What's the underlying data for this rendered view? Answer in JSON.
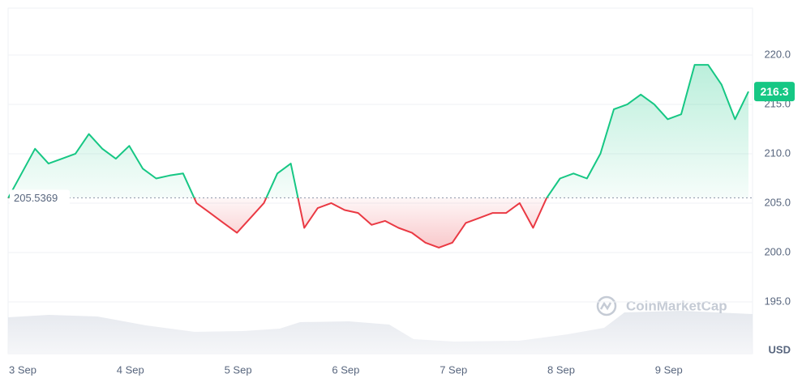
{
  "chart_data": {
    "type": "line",
    "categories": [
      "3 Sep",
      null,
      null,
      null,
      null,
      null,
      null,
      null,
      "4 Sep",
      null,
      null,
      null,
      null,
      null,
      null,
      null,
      "5 Sep",
      null,
      null,
      null,
      null,
      null,
      null,
      null,
      "6 Sep",
      null,
      null,
      null,
      null,
      null,
      null,
      null,
      "7 Sep",
      null,
      null,
      null,
      null,
      null,
      null,
      null,
      "8 Sep",
      null,
      null,
      null,
      null,
      null,
      null,
      null,
      "9 Sep",
      null,
      null,
      null,
      null,
      null,
      null,
      null
    ],
    "values": [
      205.5,
      208,
      210.5,
      209,
      209.5,
      210,
      212,
      210.5,
      209.5,
      210.8,
      208.5,
      207.5,
      207.8,
      208,
      205,
      204,
      203,
      202,
      203.5,
      205,
      208,
      209,
      202.5,
      204.5,
      205,
      204.3,
      204,
      202.8,
      203.2,
      202.5,
      202,
      201,
      200.5,
      201,
      203,
      203.5,
      204,
      204,
      205,
      202.5,
      205.5,
      207.5,
      208,
      207.5,
      210,
      214.5,
      215,
      216,
      215,
      213.5,
      214,
      219,
      219,
      217,
      213.5,
      216.3
    ],
    "baseline": 205.5369,
    "baseline_label": "205.5369",
    "up_color": "#16c784",
    "down_color": "#ea3943",
    "ylim": [
      189.75,
      224.75
    ],
    "yticks": [
      {
        "value": 195,
        "label": "195.0"
      },
      {
        "value": 200,
        "label": "200.0"
      },
      {
        "value": 205,
        "label": "205.0"
      },
      {
        "value": 210,
        "label": "210.0"
      },
      {
        "value": 215,
        "label": "215.0"
      },
      {
        "value": 220,
        "label": "220.0"
      }
    ],
    "y_unit": "USD",
    "watermark": "CoinMarketCap",
    "grid": true
  }
}
